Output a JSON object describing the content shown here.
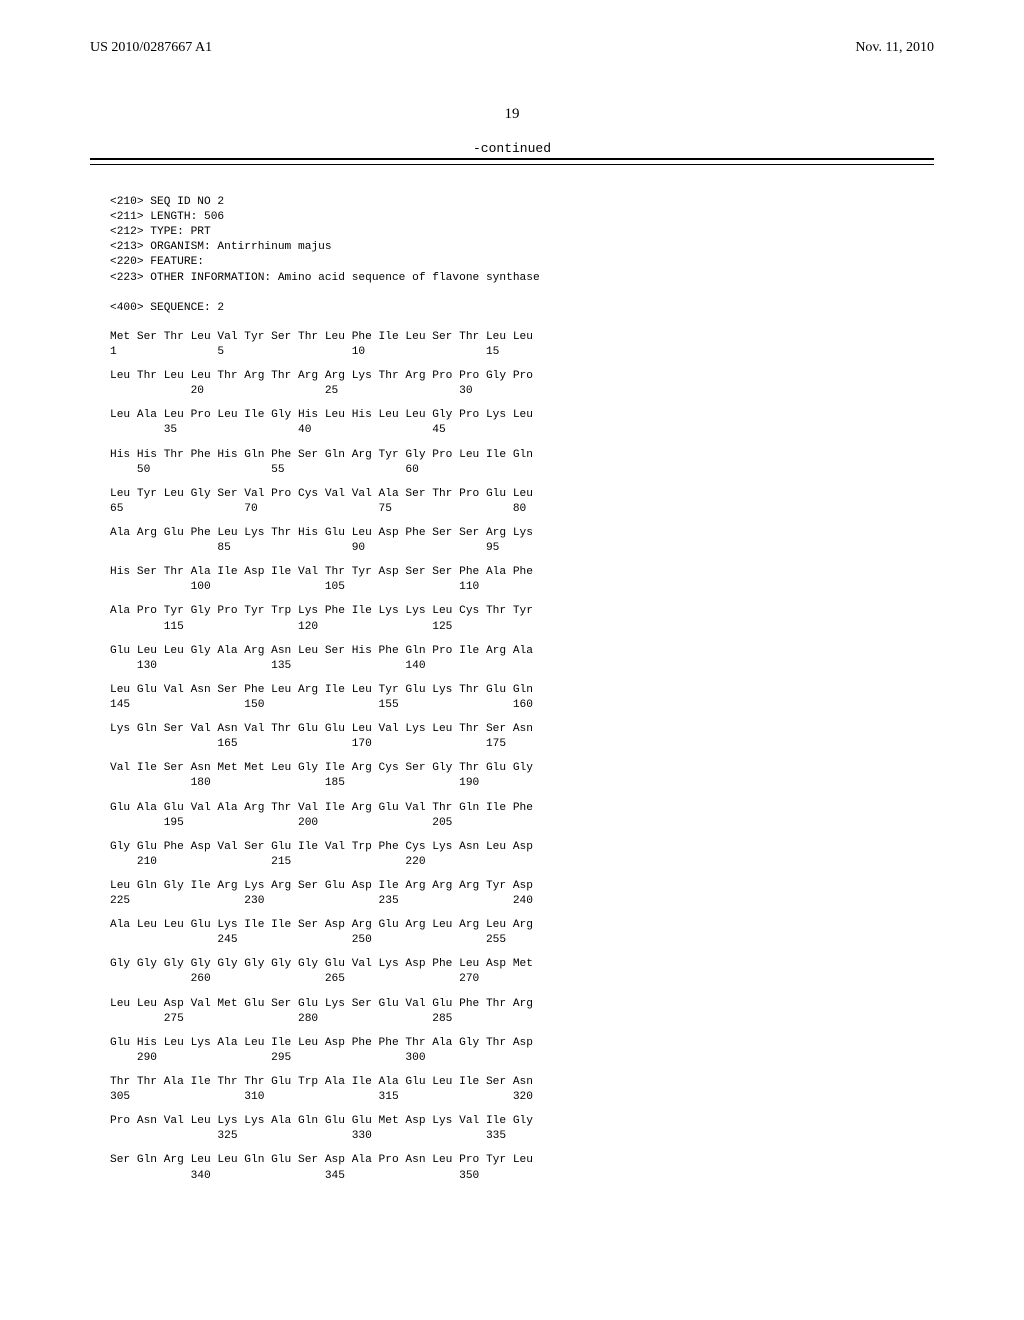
{
  "header": {
    "pub_number": "US 2010/0287667 A1",
    "pub_date": "Nov. 11, 2010"
  },
  "page_number": "19",
  "continued_label": "-continued",
  "meta_lines": [
    "<210> SEQ ID NO 2",
    "<211> LENGTH: 506",
    "<212> TYPE: PRT",
    "<213> ORGANISM: Antirrhinum majus",
    "<220> FEATURE:",
    "<223> OTHER INFORMATION: Amino acid sequence of flavone synthase",
    "",
    "<400> SEQUENCE: 2"
  ],
  "rows": [
    {
      "aa": "Met Ser Thr Leu Val Tyr Ser Thr Leu Phe Ile Leu Ser Thr Leu Leu",
      "num": "1               5                   10                  15"
    },
    {
      "aa": "Leu Thr Leu Leu Thr Arg Thr Arg Arg Lys Thr Arg Pro Pro Gly Pro",
      "num": "            20                  25                  30"
    },
    {
      "aa": "Leu Ala Leu Pro Leu Ile Gly His Leu His Leu Leu Gly Pro Lys Leu",
      "num": "        35                  40                  45"
    },
    {
      "aa": "His His Thr Phe His Gln Phe Ser Gln Arg Tyr Gly Pro Leu Ile Gln",
      "num": "    50                  55                  60"
    },
    {
      "aa": "Leu Tyr Leu Gly Ser Val Pro Cys Val Val Ala Ser Thr Pro Glu Leu",
      "num": "65                  70                  75                  80"
    },
    {
      "aa": "Ala Arg Glu Phe Leu Lys Thr His Glu Leu Asp Phe Ser Ser Arg Lys",
      "num": "                85                  90                  95"
    },
    {
      "aa": "His Ser Thr Ala Ile Asp Ile Val Thr Tyr Asp Ser Ser Phe Ala Phe",
      "num": "            100                 105                 110"
    },
    {
      "aa": "Ala Pro Tyr Gly Pro Tyr Trp Lys Phe Ile Lys Lys Leu Cys Thr Tyr",
      "num": "        115                 120                 125"
    },
    {
      "aa": "Glu Leu Leu Gly Ala Arg Asn Leu Ser His Phe Gln Pro Ile Arg Ala",
      "num": "    130                 135                 140"
    },
    {
      "aa": "Leu Glu Val Asn Ser Phe Leu Arg Ile Leu Tyr Glu Lys Thr Glu Gln",
      "num": "145                 150                 155                 160"
    },
    {
      "aa": "Lys Gln Ser Val Asn Val Thr Glu Glu Leu Val Lys Leu Thr Ser Asn",
      "num": "                165                 170                 175"
    },
    {
      "aa": "Val Ile Ser Asn Met Met Leu Gly Ile Arg Cys Ser Gly Thr Glu Gly",
      "num": "            180                 185                 190"
    },
    {
      "aa": "Glu Ala Glu Val Ala Arg Thr Val Ile Arg Glu Val Thr Gln Ile Phe",
      "num": "        195                 200                 205"
    },
    {
      "aa": "Gly Glu Phe Asp Val Ser Glu Ile Val Trp Phe Cys Lys Asn Leu Asp",
      "num": "    210                 215                 220"
    },
    {
      "aa": "Leu Gln Gly Ile Arg Lys Arg Ser Glu Asp Ile Arg Arg Arg Tyr Asp",
      "num": "225                 230                 235                 240"
    },
    {
      "aa": "Ala Leu Leu Glu Lys Ile Ile Ser Asp Arg Glu Arg Leu Arg Leu Arg",
      "num": "                245                 250                 255"
    },
    {
      "aa": "Gly Gly Gly Gly Gly Gly Gly Gly Glu Val Lys Asp Phe Leu Asp Met",
      "num": "            260                 265                 270"
    },
    {
      "aa": "Leu Leu Asp Val Met Glu Ser Glu Lys Ser Glu Val Glu Phe Thr Arg",
      "num": "        275                 280                 285"
    },
    {
      "aa": "Glu His Leu Lys Ala Leu Ile Leu Asp Phe Phe Thr Ala Gly Thr Asp",
      "num": "    290                 295                 300"
    },
    {
      "aa": "Thr Thr Ala Ile Thr Thr Glu Trp Ala Ile Ala Glu Leu Ile Ser Asn",
      "num": "305                 310                 315                 320"
    },
    {
      "aa": "Pro Asn Val Leu Lys Lys Ala Gln Glu Glu Met Asp Lys Val Ile Gly",
      "num": "                325                 330                 335"
    },
    {
      "aa": "Ser Gln Arg Leu Leu Gln Glu Ser Asp Ala Pro Asn Leu Pro Tyr Leu",
      "num": "            340                 345                 350"
    }
  ]
}
